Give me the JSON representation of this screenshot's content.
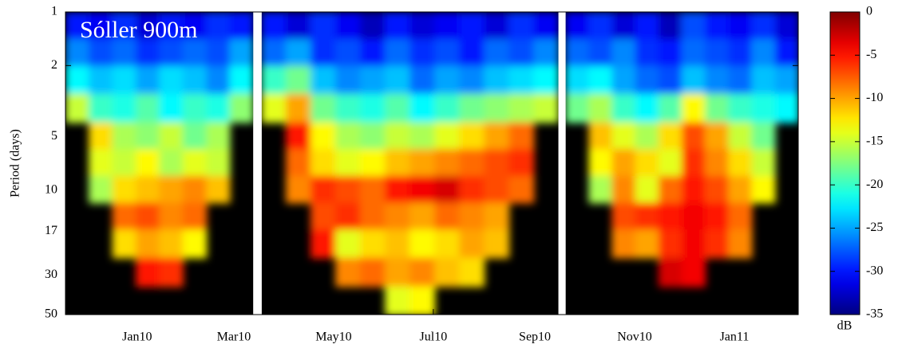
{
  "chart_data": {
    "type": "heatmap",
    "annotation": "Sóller 900m",
    "y_label": "Period (days)",
    "y_scale": "log",
    "y_inverted": true,
    "ylim": [
      1,
      50
    ],
    "yticks": [
      1,
      2,
      5,
      10,
      17,
      30,
      50
    ],
    "xlim": [
      2009.88,
      2011.107
    ],
    "xticks": [
      {
        "value": 2010.0,
        "label": "Jan10"
      },
      {
        "value": 2010.162,
        "label": "Mar10"
      },
      {
        "value": 2010.329,
        "label": "May10"
      },
      {
        "value": 2010.496,
        "label": "Jul10"
      },
      {
        "value": 2010.666,
        "label": "Sep10"
      },
      {
        "value": 2010.833,
        "label": "Nov10"
      },
      {
        "value": 2011.0,
        "label": "Jan11"
      }
    ],
    "y": [
      1.2,
      1.7,
      2.4,
      3.5,
      5,
      7,
      10,
      14,
      20,
      29,
      42
    ],
    "panels": [
      {
        "x": [
          2009.9,
          2009.939,
          2009.979,
          2010.018,
          2010.057,
          2010.097,
          2010.136,
          2010.175
        ],
        "z": [
          [
            -30,
            -31,
            -29,
            -32,
            -30,
            -31,
            -29,
            -30
          ],
          [
            -26,
            -28,
            -27,
            -29,
            -28,
            -27,
            -28,
            -25
          ],
          [
            -22,
            -24,
            -23,
            -25,
            -23,
            -24,
            -26,
            -22
          ],
          [
            -15,
            -20,
            -21,
            -19,
            -22,
            -20,
            -21,
            -17
          ],
          [
            null,
            -12,
            -16,
            -17,
            -15,
            -18,
            -16,
            null
          ],
          [
            null,
            -14,
            -15,
            -13,
            -16,
            -14,
            -15,
            null
          ],
          [
            null,
            -16,
            -12,
            -11,
            -10,
            -9,
            -11,
            null
          ],
          [
            null,
            null,
            -8,
            -7,
            -9,
            -8,
            null,
            null
          ],
          [
            null,
            null,
            -12,
            -10,
            -11,
            -13,
            null,
            null
          ],
          [
            null,
            null,
            null,
            -5,
            -6,
            null,
            null,
            null
          ],
          [
            null,
            null,
            null,
            null,
            null,
            null,
            null,
            null
          ]
        ]
      },
      {
        "x": [
          2010.229,
          2010.27,
          2010.312,
          2010.353,
          2010.395,
          2010.436,
          2010.478,
          2010.519,
          2010.561,
          2010.602,
          2010.644,
          2010.685
        ],
        "z": [
          [
            -30,
            -32,
            -29,
            -31,
            -33,
            -30,
            -32,
            -31,
            -30,
            -32,
            -29,
            -31
          ],
          [
            -27,
            -25,
            -29,
            -28,
            -30,
            -27,
            -29,
            -28,
            -30,
            -27,
            -28,
            -26
          ],
          [
            -20,
            -18,
            -24,
            -26,
            -25,
            -24,
            -27,
            -25,
            -26,
            -24,
            -23,
            -22
          ],
          [
            -14,
            -10,
            -18,
            -20,
            -21,
            -19,
            -22,
            -20,
            -18,
            -17,
            -16,
            -15
          ],
          [
            null,
            -5,
            -13,
            -16,
            -17,
            -15,
            -16,
            -14,
            -12,
            -10,
            -8,
            null
          ],
          [
            null,
            -8,
            -12,
            -14,
            -13,
            -11,
            -10,
            -9,
            -8,
            -7,
            -6,
            null
          ],
          [
            null,
            -9,
            -6,
            -7,
            -8,
            -5,
            -4,
            -3,
            -6,
            -7,
            -8,
            null
          ],
          [
            null,
            null,
            -7,
            -6,
            -8,
            -9,
            -10,
            -8,
            -9,
            -10,
            null,
            null
          ],
          [
            null,
            null,
            -5,
            -14,
            -12,
            -11,
            -13,
            -12,
            -10,
            -11,
            null,
            null
          ],
          [
            null,
            null,
            null,
            -9,
            -8,
            -10,
            -9,
            -11,
            -12,
            null,
            null,
            null
          ],
          [
            null,
            null,
            null,
            null,
            null,
            -14,
            -13,
            null,
            null,
            null,
            null,
            null
          ]
        ]
      },
      {
        "x": [
          2010.737,
          2010.776,
          2010.815,
          2010.854,
          2010.893,
          2010.932,
          2010.971,
          2011.01,
          2011.049,
          2011.088
        ],
        "z": [
          [
            -31,
            -29,
            -32,
            -30,
            -33,
            -28,
            -30,
            -31,
            -29,
            -32
          ],
          [
            -27,
            -28,
            -26,
            -29,
            -30,
            -27,
            -28,
            -29,
            -26,
            -30
          ],
          [
            -23,
            -22,
            -25,
            -27,
            -28,
            -24,
            -26,
            -27,
            -24,
            -25
          ],
          [
            -18,
            -16,
            -20,
            -22,
            -19,
            -13,
            -18,
            -20,
            -21,
            -22
          ],
          [
            null,
            -11,
            -14,
            -16,
            -12,
            -7,
            -10,
            -15,
            -18,
            null
          ],
          [
            null,
            -13,
            -10,
            -12,
            -14,
            -6,
            -9,
            -12,
            -15,
            null
          ],
          [
            null,
            -16,
            -9,
            -14,
            -8,
            -5,
            -7,
            -10,
            -13,
            null
          ],
          [
            null,
            null,
            -7,
            -6,
            -5,
            -4,
            -5,
            -8,
            null,
            null
          ],
          [
            null,
            null,
            -9,
            -10,
            -6,
            -4,
            -6,
            -9,
            null,
            null
          ],
          [
            null,
            null,
            null,
            null,
            -3,
            -4,
            null,
            null,
            null,
            null
          ],
          [
            null,
            null,
            null,
            null,
            null,
            null,
            null,
            null,
            null,
            null
          ]
        ]
      }
    ],
    "colormap": "jet",
    "clim": [
      -35,
      0
    ],
    "colorbar_ticks": [
      0,
      -5,
      -10,
      -15,
      -20,
      -25,
      -30,
      -35
    ],
    "colorbar_label": "dB"
  }
}
